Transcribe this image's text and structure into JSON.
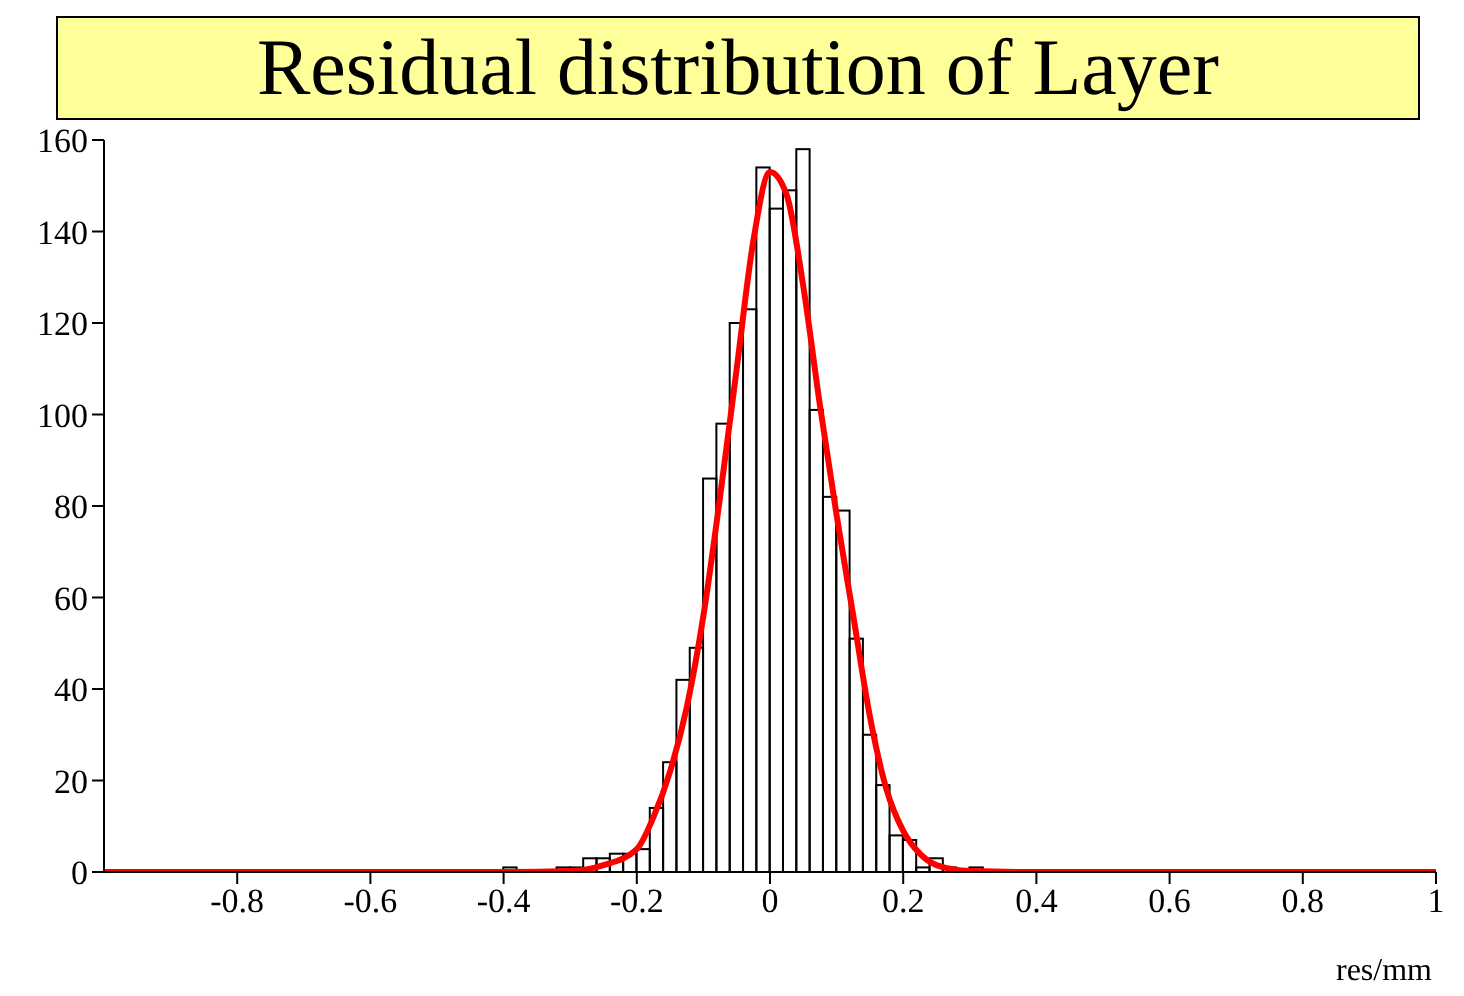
{
  "chart_data": {
    "type": "histogram",
    "title": "Residual distribution of Layer",
    "xlabel": "res/mm",
    "xlim": [
      -1,
      1
    ],
    "xticks": [
      -0.8,
      -0.6,
      -0.4,
      -0.2,
      0,
      0.2,
      0.4,
      0.6,
      0.8,
      1
    ],
    "ylim": [
      0,
      160
    ],
    "yticks": [
      0,
      20,
      40,
      60,
      80,
      100,
      120,
      140,
      160
    ],
    "series": [
      {
        "color": "#000000",
        "bins": [
          -1,
          -0.98,
          -0.96,
          -0.94,
          -0.92,
          -0.9,
          -0.88,
          -0.86,
          -0.84,
          -0.82,
          -0.8,
          -0.78,
          -0.76,
          -0.74,
          -0.72,
          -0.7,
          -0.68,
          -0.66,
          -0.64,
          -0.62,
          -0.6,
          -0.58,
          -0.56,
          -0.54,
          -0.52,
          -0.5,
          -0.48,
          -0.46,
          -0.44,
          -0.42,
          -0.4,
          -0.38,
          -0.36,
          -0.34,
          -0.32,
          -0.3,
          -0.28,
          -0.26,
          -0.24,
          -0.22,
          -0.2,
          -0.18,
          -0.16,
          -0.14,
          -0.12,
          -0.1,
          -0.08,
          -0.06,
          -0.04,
          -0.02,
          0,
          0.02,
          0.04,
          0.06,
          0.08,
          0.1,
          0.12,
          0.14,
          0.16,
          0.18,
          0.2,
          0.22,
          0.24,
          0.26,
          0.28,
          0.3,
          0.32,
          0.34,
          0.36,
          0.38,
          0.4,
          0.42,
          0.44,
          0.46,
          0.48,
          0.5,
          0.52,
          0.54,
          0.56,
          0.58,
          0.6,
          0.62,
          0.64,
          0.66,
          0.68,
          0.7,
          0.72,
          0.74,
          0.76,
          0.78,
          0.8,
          0.82,
          0.84,
          0.86,
          0.88,
          0.9,
          0.92,
          0.94,
          0.96,
          0.98,
          1
        ],
        "values": [
          0,
          0,
          0,
          0,
          0,
          0,
          0,
          0,
          0,
          0,
          0,
          0,
          0,
          0,
          0,
          0,
          0,
          0,
          0,
          0,
          0,
          0,
          0,
          0,
          0,
          0,
          0,
          0,
          0,
          0,
          1,
          0,
          0,
          0,
          1,
          1,
          3,
          3,
          4,
          4,
          5,
          14,
          24,
          42,
          49,
          86,
          98,
          120,
          123,
          154,
          145,
          149,
          158,
          101,
          82,
          79,
          51,
          30,
          19,
          8,
          7,
          1,
          3,
          1,
          0,
          1,
          0,
          0,
          0,
          0,
          0,
          0,
          0,
          0,
          0,
          0,
          0,
          0,
          0,
          0,
          0,
          0,
          0,
          0,
          0,
          0,
          0,
          0,
          0,
          0,
          0,
          0,
          0,
          0,
          0,
          0,
          0,
          0,
          0,
          0
        ]
      },
      {
        "type": "line",
        "color": "#ff0000",
        "x": [
          -1,
          -0.4,
          -0.3,
          -0.25,
          -0.2,
          -0.175,
          -0.15,
          -0.125,
          -0.1,
          -0.075,
          -0.05,
          -0.025,
          0,
          0.025,
          0.05,
          0.075,
          0.1,
          0.125,
          0.15,
          0.175,
          0.2,
          0.225,
          0.25,
          0.3,
          0.4,
          1
        ],
        "values": [
          0,
          0,
          0.2,
          1.5,
          5,
          12,
          22,
          36,
          56,
          82,
          110,
          138,
          153,
          148,
          128,
          102,
          78,
          56,
          34,
          18,
          9,
          4,
          1.5,
          0.2,
          0,
          0
        ]
      }
    ]
  }
}
